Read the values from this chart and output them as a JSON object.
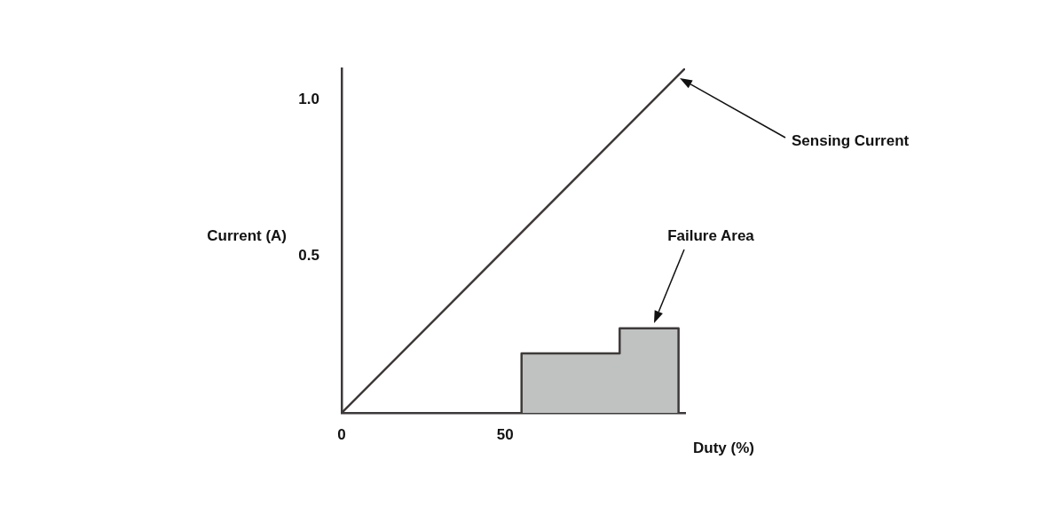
{
  "chart_data": {
    "type": "line",
    "xlabel": "Duty (%)",
    "ylabel": "Current (A)",
    "annotations": [
      "Sensing Current",
      "Failure Area"
    ],
    "series": [
      {
        "type": "line",
        "color": "#3f3838",
        "x": [
          0,
          105
        ],
        "values": [
          0,
          1.1
        ]
      },
      {
        "type": "area",
        "color": "#c0c2c1",
        "x": [
          55,
          55,
          85,
          85,
          103,
          103
        ],
        "values": [
          0,
          0.19,
          0.19,
          0.27,
          0.27,
          0
        ]
      }
    ],
    "xlim": [
      0,
      105
    ],
    "ylim": [
      0,
      1.1
    ],
    "xticks": [
      0,
      50
    ],
    "yticks": [
      0.5,
      {
        "value": 1,
        "label": "1.0"
      }
    ],
    "marker": "none"
  }
}
